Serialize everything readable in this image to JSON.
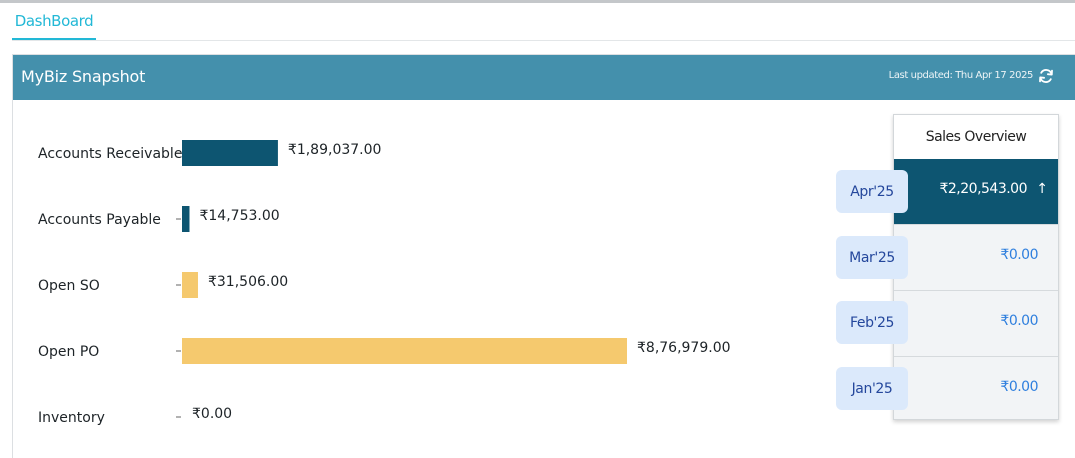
{
  "tabs": {
    "dashboard": "DashBoard"
  },
  "card": {
    "title": "MyBiz Snapshot",
    "last_updated": "Last updated: Thu Apr 17 2025",
    "refresh_icon": "refresh-icon"
  },
  "chart_data": {
    "type": "bar",
    "orientation": "horizontal",
    "categories": [
      "Accounts Receivable",
      "Accounts Payable",
      "Open SO",
      "Open PO",
      "Inventory"
    ],
    "values": [
      189037,
      14753,
      31506,
      876979,
      0
    ],
    "value_labels": [
      "₹1,89,037.00",
      "₹14,753.00",
      "₹31,506.00",
      "₹8,76,979.00",
      "₹0.00"
    ],
    "colors": [
      "#0d5571",
      "#0d5571",
      "#f5c96e",
      "#f5c96e",
      "#0d5571"
    ],
    "xlim": [
      0,
      876979
    ]
  },
  "sales_overview": {
    "title": "Sales Overview",
    "rows": [
      {
        "month": "Apr'25",
        "amount": "₹2,20,543.00",
        "active": true,
        "trend_icon": "arrow-up-icon"
      },
      {
        "month": "Mar'25",
        "amount": "₹0.00",
        "active": false
      },
      {
        "month": "Feb'25",
        "amount": "₹0.00",
        "active": false
      },
      {
        "month": "Jan'25",
        "amount": "₹0.00",
        "active": false
      }
    ],
    "colors": {
      "active_bg": "#0d5571",
      "amount": "#2f7fde",
      "pill_bg": "#dbe9fb",
      "pill_text": "#24479c"
    }
  }
}
